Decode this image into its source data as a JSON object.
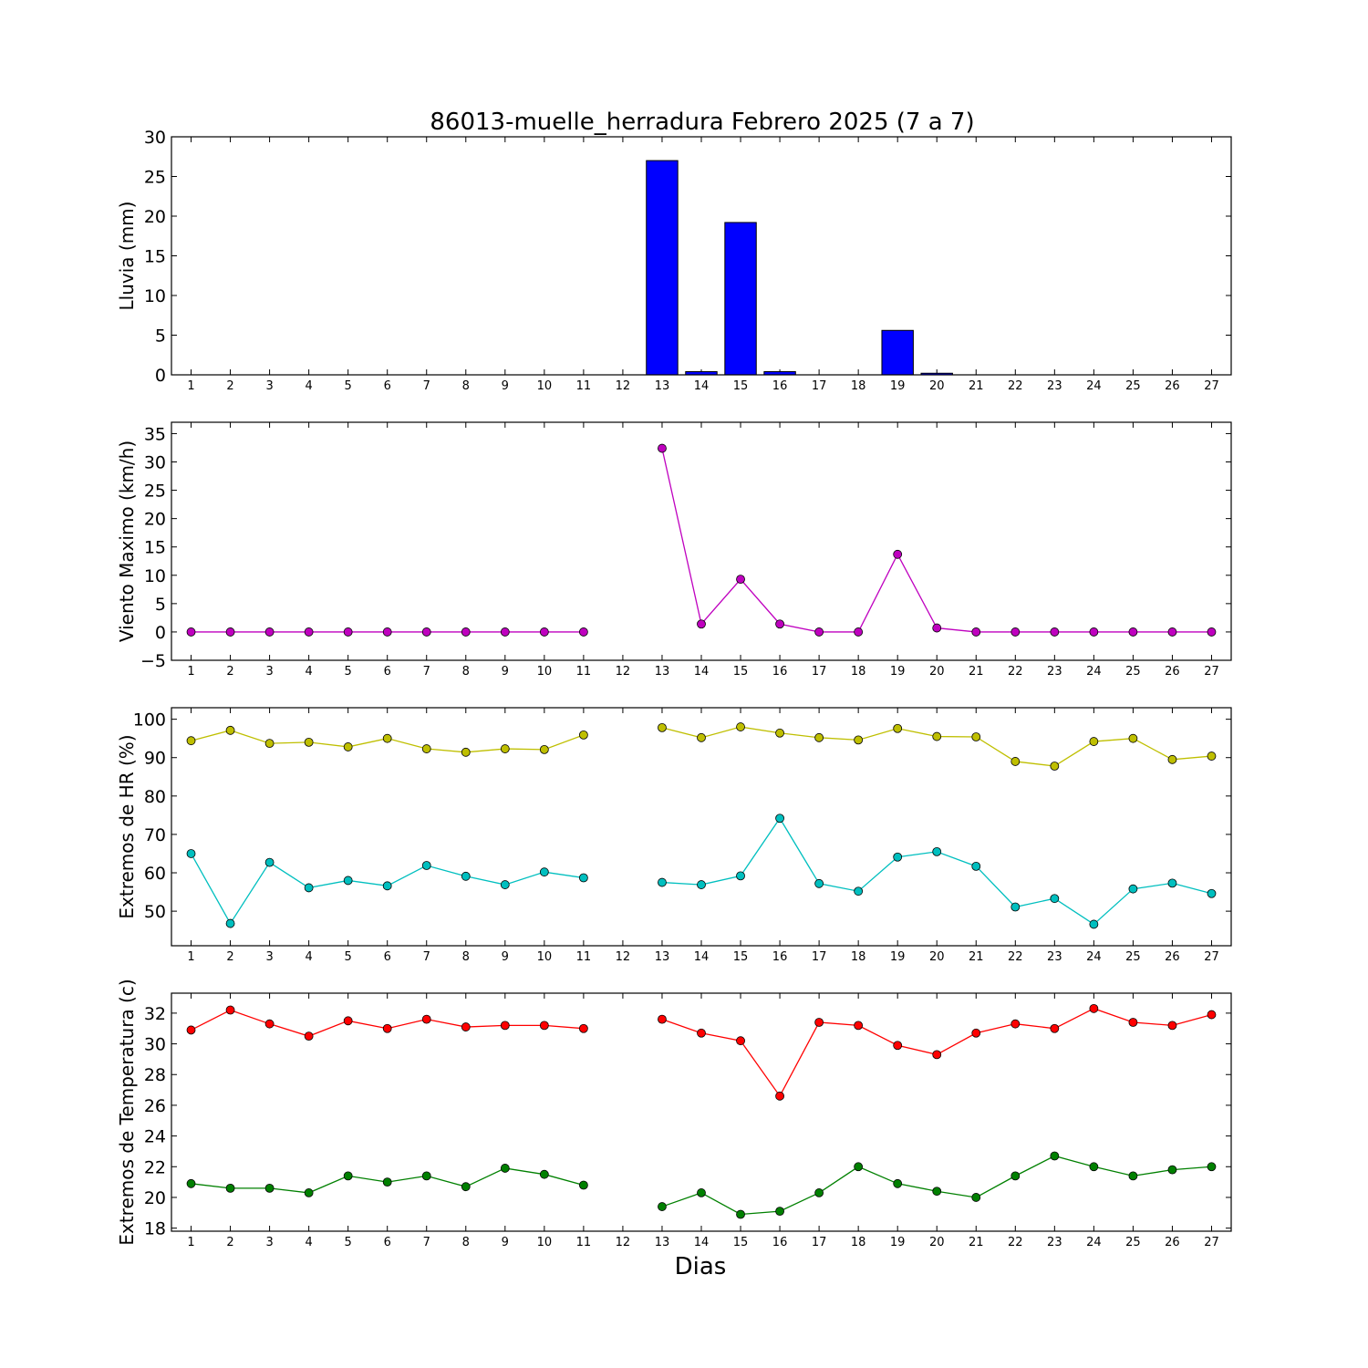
{
  "title": "86013-muelle_herradura Febrero 2025  (7 a 7)",
  "xlabel": "Dias",
  "chart_data": [
    {
      "type": "bar",
      "ylabel": "Lluvia (mm)",
      "ylim": [
        0,
        30
      ],
      "yticks": [
        0,
        5,
        10,
        15,
        20,
        25,
        30
      ],
      "x": [
        1,
        2,
        3,
        4,
        5,
        6,
        7,
        8,
        9,
        10,
        11,
        12,
        13,
        14,
        15,
        16,
        17,
        18,
        19,
        20,
        21,
        22,
        23,
        24,
        25,
        26,
        27
      ],
      "series": [
        {
          "color": "#0000ff",
          "values": [
            0,
            0,
            0,
            0,
            0,
            0,
            0,
            0,
            0,
            0,
            0,
            null,
            27.0,
            0.4,
            19.2,
            0.4,
            0,
            0,
            5.6,
            0.2,
            0,
            0,
            0,
            0,
            0,
            0,
            0
          ]
        }
      ]
    },
    {
      "type": "line",
      "ylabel": "Viento Maximo (km/h)",
      "ylim": [
        -5,
        37
      ],
      "yticks": [
        -5,
        0,
        5,
        10,
        15,
        20,
        25,
        30,
        35
      ],
      "x": [
        1,
        2,
        3,
        4,
        5,
        6,
        7,
        8,
        9,
        10,
        11,
        12,
        13,
        14,
        15,
        16,
        17,
        18,
        19,
        20,
        21,
        22,
        23,
        24,
        25,
        26,
        27
      ],
      "series": [
        {
          "color": "#bf00bf",
          "values": [
            0,
            0,
            0,
            0,
            0,
            0,
            0,
            0,
            0,
            0,
            0,
            null,
            32.4,
            1.4,
            9.3,
            1.4,
            0,
            0,
            13.7,
            0.7,
            0,
            0,
            0,
            0,
            0,
            0,
            0
          ]
        }
      ]
    },
    {
      "type": "line",
      "ylabel": "Extremos de HR (%)",
      "ylim": [
        41,
        103
      ],
      "yticks": [
        50,
        60,
        70,
        80,
        90,
        100
      ],
      "x": [
        1,
        2,
        3,
        4,
        5,
        6,
        7,
        8,
        9,
        10,
        11,
        12,
        13,
        14,
        15,
        16,
        17,
        18,
        19,
        20,
        21,
        22,
        23,
        24,
        25,
        26,
        27
      ],
      "series": [
        {
          "color": "#bfbf00",
          "values": [
            94.4,
            97.1,
            93.7,
            94.0,
            92.8,
            95.0,
            92.3,
            91.4,
            92.3,
            92.1,
            95.9,
            null,
            97.8,
            95.2,
            98.0,
            96.4,
            95.2,
            94.6,
            97.6,
            95.5,
            95.4,
            89.0,
            87.8,
            94.2,
            95.0,
            89.5,
            90.4
          ]
        },
        {
          "color": "#00bfbf",
          "values": [
            65.0,
            46.8,
            62.7,
            56.1,
            58.0,
            56.6,
            61.9,
            59.1,
            56.9,
            60.2,
            58.7,
            null,
            57.5,
            56.9,
            59.2,
            74.2,
            57.2,
            55.2,
            64.1,
            65.5,
            61.7,
            51.1,
            53.3,
            46.6,
            55.8,
            57.3,
            54.6
          ]
        }
      ]
    },
    {
      "type": "line",
      "ylabel": "Extremos de Temperatura (c)",
      "ylim": [
        17.8,
        33.3
      ],
      "yticks": [
        18,
        20,
        22,
        24,
        26,
        28,
        30,
        32
      ],
      "x": [
        1,
        2,
        3,
        4,
        5,
        6,
        7,
        8,
        9,
        10,
        11,
        12,
        13,
        14,
        15,
        16,
        17,
        18,
        19,
        20,
        21,
        22,
        23,
        24,
        25,
        26,
        27
      ],
      "series": [
        {
          "color": "#ff0000",
          "values": [
            30.9,
            32.2,
            31.3,
            30.5,
            31.5,
            31.0,
            31.6,
            31.1,
            31.2,
            31.2,
            31.0,
            null,
            31.6,
            30.7,
            30.2,
            26.6,
            31.4,
            31.2,
            29.9,
            29.3,
            30.7,
            31.3,
            31.0,
            32.3,
            31.4,
            31.2,
            31.9
          ]
        },
        {
          "color": "#008000",
          "values": [
            20.9,
            20.6,
            20.6,
            20.3,
            21.4,
            21.0,
            21.4,
            20.7,
            21.9,
            21.5,
            20.8,
            null,
            19.4,
            20.3,
            18.9,
            19.1,
            20.3,
            22.0,
            20.9,
            20.4,
            20.0,
            21.4,
            22.7,
            22.0,
            21.4,
            21.8,
            22.0
          ]
        }
      ]
    }
  ]
}
